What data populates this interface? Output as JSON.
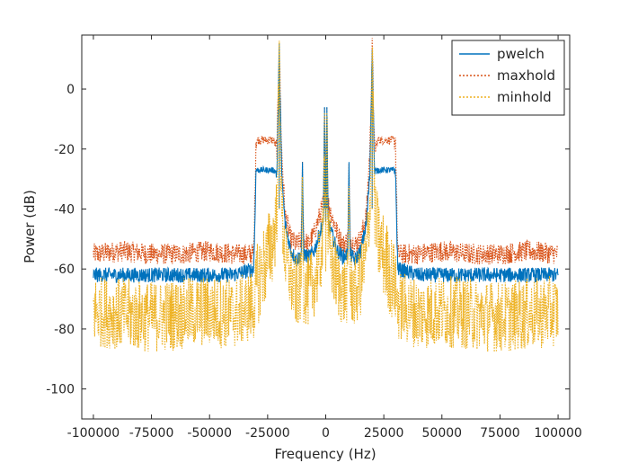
{
  "chart_data": {
    "type": "line",
    "title": "",
    "xlabel": "Frequency (Hz)",
    "ylabel": "Power (dB)",
    "xlim": [
      -105000,
      105000
    ],
    "ylim": [
      -110,
      18
    ],
    "xticks": [
      -100000,
      -75000,
      -50000,
      -25000,
      0,
      25000,
      50000,
      75000,
      100000
    ],
    "xtick_labels": [
      "-100000",
      "-75000",
      "-50000",
      "-25000",
      "0",
      "25000",
      "50000",
      "75000",
      "100000"
    ],
    "yticks": [
      -100,
      -80,
      -60,
      -40,
      -20,
      0
    ],
    "ytick_labels": [
      "-100",
      "-80",
      "-60",
      "-40",
      "-20",
      "0"
    ],
    "grid": false,
    "legend_position": "top-right",
    "series": [
      {
        "name": "maxhold",
        "style": "dotted",
        "color": "#d95319",
        "x": [
          -100000,
          -87500,
          -75000,
          -62500,
          -50000,
          -40000,
          -31000,
          -30000,
          -26000,
          -22500,
          -21000,
          -20000,
          -19000,
          -17500,
          -15000,
          -12500,
          -10500,
          -10000,
          -9500,
          -7500,
          -5000,
          -2500,
          -1000,
          -500,
          0,
          500,
          1000,
          2500,
          5000,
          7500,
          9500,
          10000,
          10500,
          12500,
          15000,
          17500,
          19000,
          20000,
          21000,
          22500,
          26000,
          30000,
          31000,
          40000,
          50000,
          62500,
          75000,
          87500,
          100000
        ],
        "values": [
          -55,
          -54,
          -55,
          -55,
          -54,
          -55,
          -55,
          -17,
          -17,
          -17,
          -20,
          14,
          -20,
          -42,
          -50,
          -52,
          -50,
          -26,
          -50,
          -52,
          -48,
          -42,
          -38,
          -6,
          -42,
          -6,
          -38,
          -42,
          -48,
          -52,
          -50,
          -26,
          -50,
          -52,
          -50,
          -42,
          -20,
          14,
          -20,
          -17,
          -17,
          -17,
          -55,
          -55,
          -54,
          -55,
          -55,
          -54,
          -55
        ]
      },
      {
        "name": "pwelch",
        "style": "solid",
        "color": "#0072bd",
        "x": [
          -100000,
          -87500,
          -75000,
          -62500,
          -50000,
          -40000,
          -31000,
          -30000,
          -26000,
          -22500,
          -21000,
          -20000,
          -19000,
          -17500,
          -15000,
          -12500,
          -10500,
          -10000,
          -9500,
          -7500,
          -5000,
          -2500,
          -1000,
          -500,
          0,
          500,
          1000,
          2500,
          5000,
          7500,
          9500,
          10000,
          10500,
          12500,
          15000,
          17500,
          19000,
          20000,
          21000,
          22500,
          26000,
          30000,
          31000,
          40000,
          50000,
          62500,
          75000,
          87500,
          100000
        ],
        "values": [
          -62,
          -62,
          -62,
          -62,
          -62,
          -62,
          -60,
          -27,
          -27,
          -27,
          -28,
          13,
          -28,
          -45,
          -54,
          -57,
          -55,
          -26,
          -55,
          -56,
          -54,
          -48,
          -44,
          -6,
          -46,
          -6,
          -44,
          -48,
          -54,
          -56,
          -55,
          -26,
          -55,
          -57,
          -54,
          -45,
          -28,
          13,
          -28,
          -27,
          -27,
          -27,
          -60,
          -62,
          -62,
          -62,
          -62,
          -62,
          -62
        ]
      },
      {
        "name": "minhold",
        "style": "dotted",
        "color": "#edb120",
        "x": [
          -100000,
          -87500,
          -75000,
          -62500,
          -50000,
          -40000,
          -31000,
          -30000,
          -26000,
          -22500,
          -21000,
          -20000,
          -19000,
          -17500,
          -15000,
          -12500,
          -10500,
          -10000,
          -9500,
          -7500,
          -5000,
          -2500,
          -1000,
          -500,
          0,
          500,
          1000,
          2500,
          5000,
          7500,
          9500,
          10000,
          10500,
          12500,
          15000,
          17500,
          19000,
          20000,
          21000,
          22500,
          26000,
          30000,
          31000,
          40000,
          50000,
          62500,
          75000,
          87500,
          100000
        ],
        "values": [
          -74,
          -75,
          -76,
          -75,
          -74,
          -75,
          -72,
          -66,
          -58,
          -50,
          -40,
          13,
          -40,
          -56,
          -64,
          -68,
          -66,
          -28,
          -66,
          -68,
          -64,
          -58,
          -50,
          -8,
          -52,
          -8,
          -50,
          -58,
          -64,
          -68,
          -66,
          -28,
          -66,
          -68,
          -64,
          -56,
          -40,
          13,
          -40,
          -50,
          -58,
          -66,
          -72,
          -75,
          -74,
          -75,
          -76,
          -75,
          -74
        ]
      }
    ]
  }
}
